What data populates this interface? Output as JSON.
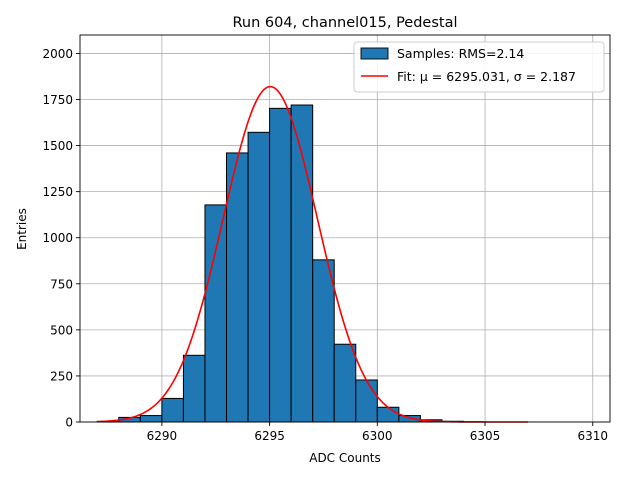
{
  "chart_data": {
    "type": "bar",
    "title": "Run 604, channel015, Pedestal",
    "xlabel": "ADC Counts",
    "ylabel": "Entries",
    "xlim": [
      6286.2,
      6310.8
    ],
    "ylim": [
      0,
      2100
    ],
    "grid": true,
    "legend_position": "top-right",
    "xticks": [
      6290,
      6295,
      6300,
      6305,
      6310
    ],
    "yticks": [
      0,
      250,
      500,
      750,
      1000,
      1250,
      1500,
      1750,
      2000
    ],
    "bin_edges": [
      6287,
      6288,
      6289,
      6290,
      6291,
      6292,
      6293,
      6294,
      6295,
      6296,
      6297,
      6298,
      6299,
      6300,
      6301,
      6302,
      6303,
      6304,
      6305,
      6306,
      6307,
      6308,
      6309
    ],
    "counts": [
      3,
      25,
      35,
      128,
      362,
      1178,
      1460,
      1572,
      1702,
      1720,
      880,
      422,
      228,
      80,
      35,
      12,
      4,
      1,
      0,
      0,
      0,
      0
    ],
    "series": [
      {
        "name": "Samples: RMS=2.14",
        "kind": "histogram",
        "color": "#1f77b4"
      },
      {
        "name": "Fit: μ = 6295.031, σ = 2.187",
        "kind": "gaussian_fit",
        "mu": 6295.031,
        "sigma": 2.187,
        "amplitude": 1820,
        "x_range": [
          6287,
          6307
        ],
        "color": "#ff0000"
      }
    ]
  }
}
